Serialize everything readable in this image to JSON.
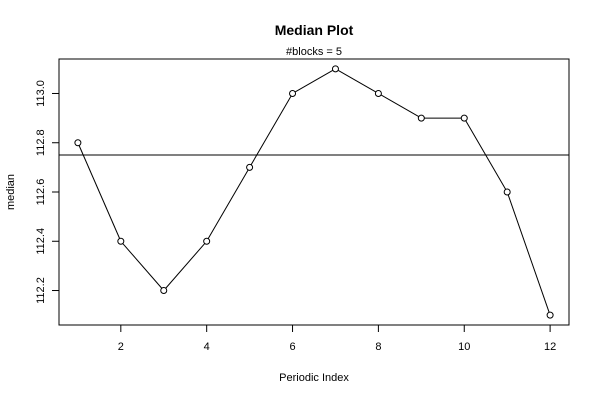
{
  "chart_data": {
    "type": "line",
    "title": "Median Plot",
    "subtitle": "#blocks =  5",
    "xlabel": "Periodic Index",
    "ylabel": "median",
    "x": [
      1,
      2,
      3,
      4,
      5,
      6,
      7,
      8,
      9,
      10,
      11,
      12
    ],
    "series": [
      {
        "values": [
          112.8,
          112.4,
          112.2,
          112.4,
          112.7,
          113.0,
          113.1,
          113.0,
          112.9,
          112.9,
          112.6,
          112.1
        ]
      }
    ],
    "reference_line": 112.75,
    "xticks": [
      2,
      4,
      6,
      8,
      10,
      12
    ],
    "yticks": [
      "112.2",
      "112.4",
      "112.6",
      "112.8",
      "113.0"
    ],
    "xlim": [
      0.56,
      12.44
    ],
    "ylim": [
      112.06,
      113.14
    ],
    "grid": false,
    "markers": "open-circle"
  }
}
